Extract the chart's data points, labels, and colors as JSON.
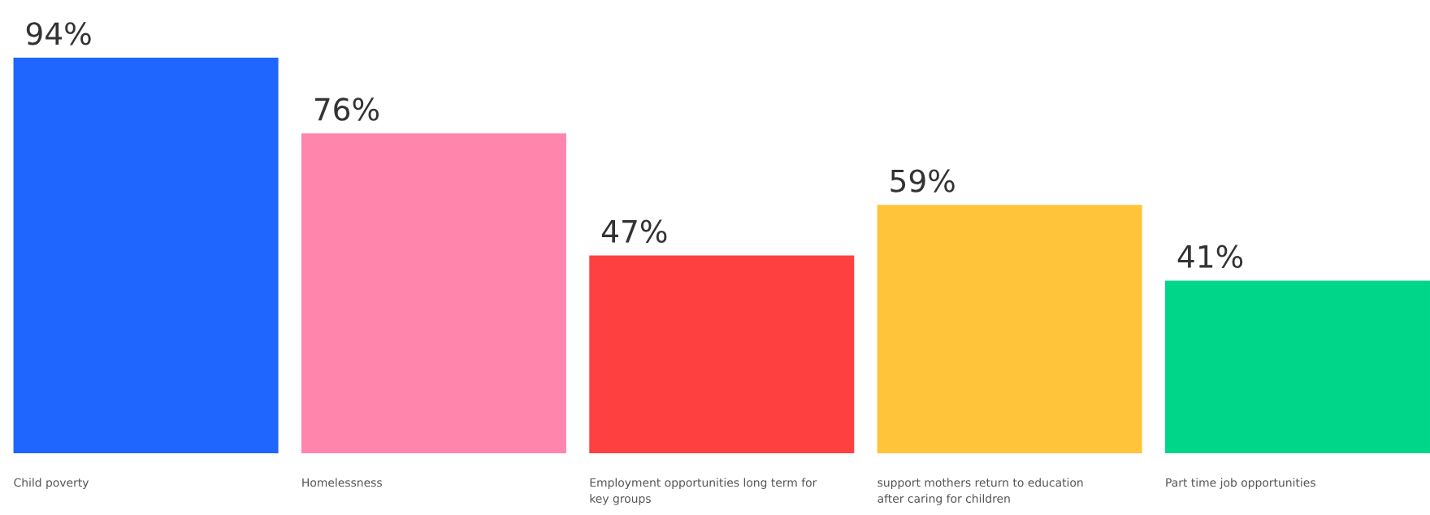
{
  "chart_data": {
    "type": "bar",
    "categories": [
      "Child poverty",
      "Homelessness",
      "Employment opportunities long term for key groups",
      "support mothers return to education after caring for children",
      "Part time job opportunities"
    ],
    "values": [
      94,
      76,
      47,
      59,
      41
    ],
    "value_labels": [
      "94%",
      "76%",
      "47%",
      "59%",
      "41%"
    ],
    "colors": [
      "#1f66ff",
      "#ff85ad",
      "#ff4040",
      "#ffc43a",
      "#00d68a"
    ],
    "grid": false
  }
}
